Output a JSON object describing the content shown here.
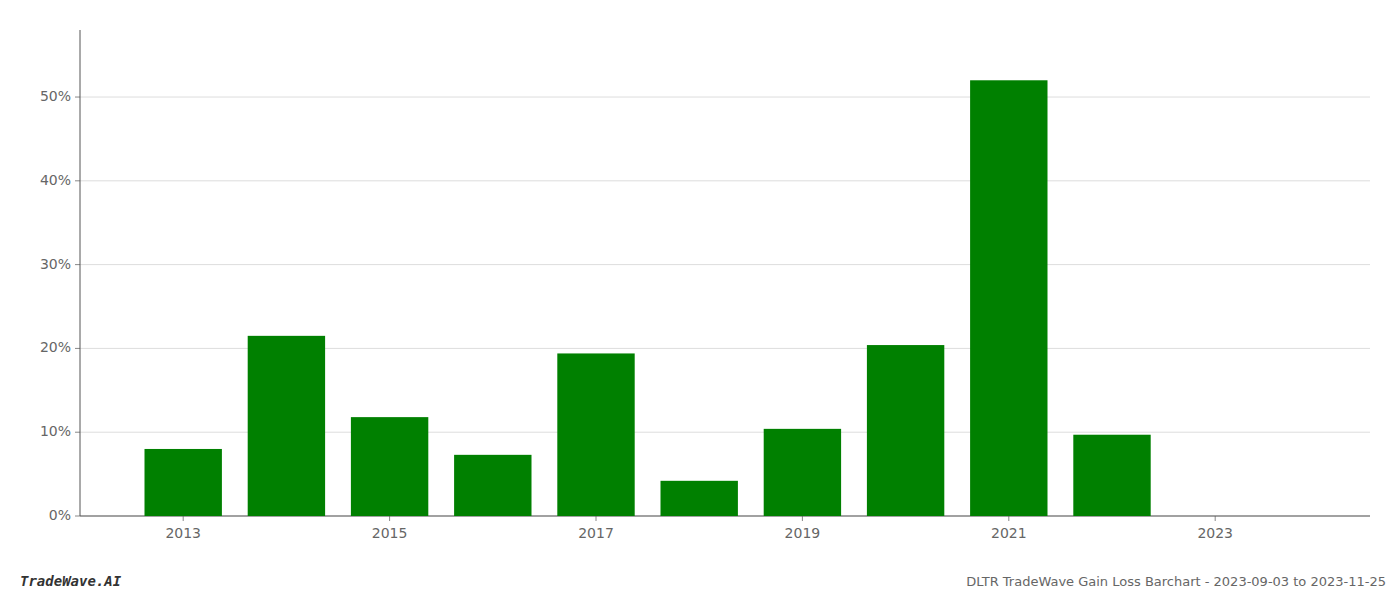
{
  "chart_data": {
    "type": "bar",
    "x": [
      2013,
      2014,
      2015,
      2016,
      2017,
      2018,
      2019,
      2020,
      2021,
      2022,
      2023
    ],
    "values": [
      0.08,
      0.215,
      0.118,
      0.073,
      0.194,
      0.042,
      0.104,
      0.204,
      0.52,
      0.097,
      0.0
    ],
    "color": "#008000",
    "xlim": [
      2012.0,
      2024.5
    ],
    "xticks": [
      2013,
      2015,
      2017,
      2019,
      2021,
      2023
    ],
    "ylim": [
      0,
      0.58
    ],
    "yticks": [
      {
        "value": 0.0,
        "label": "0%"
      },
      {
        "value": 0.1,
        "label": "10%"
      },
      {
        "value": 0.2,
        "label": "20%"
      },
      {
        "value": 0.3,
        "label": "30%"
      },
      {
        "value": 0.4,
        "label": "40%"
      },
      {
        "value": 0.5,
        "label": "50%"
      }
    ],
    "grid": true,
    "annotations": [
      "TradeWave.AI",
      "DLTR TradeWave Gain Loss Barchart - 2023-09-03 to 2023-11-25"
    ]
  }
}
